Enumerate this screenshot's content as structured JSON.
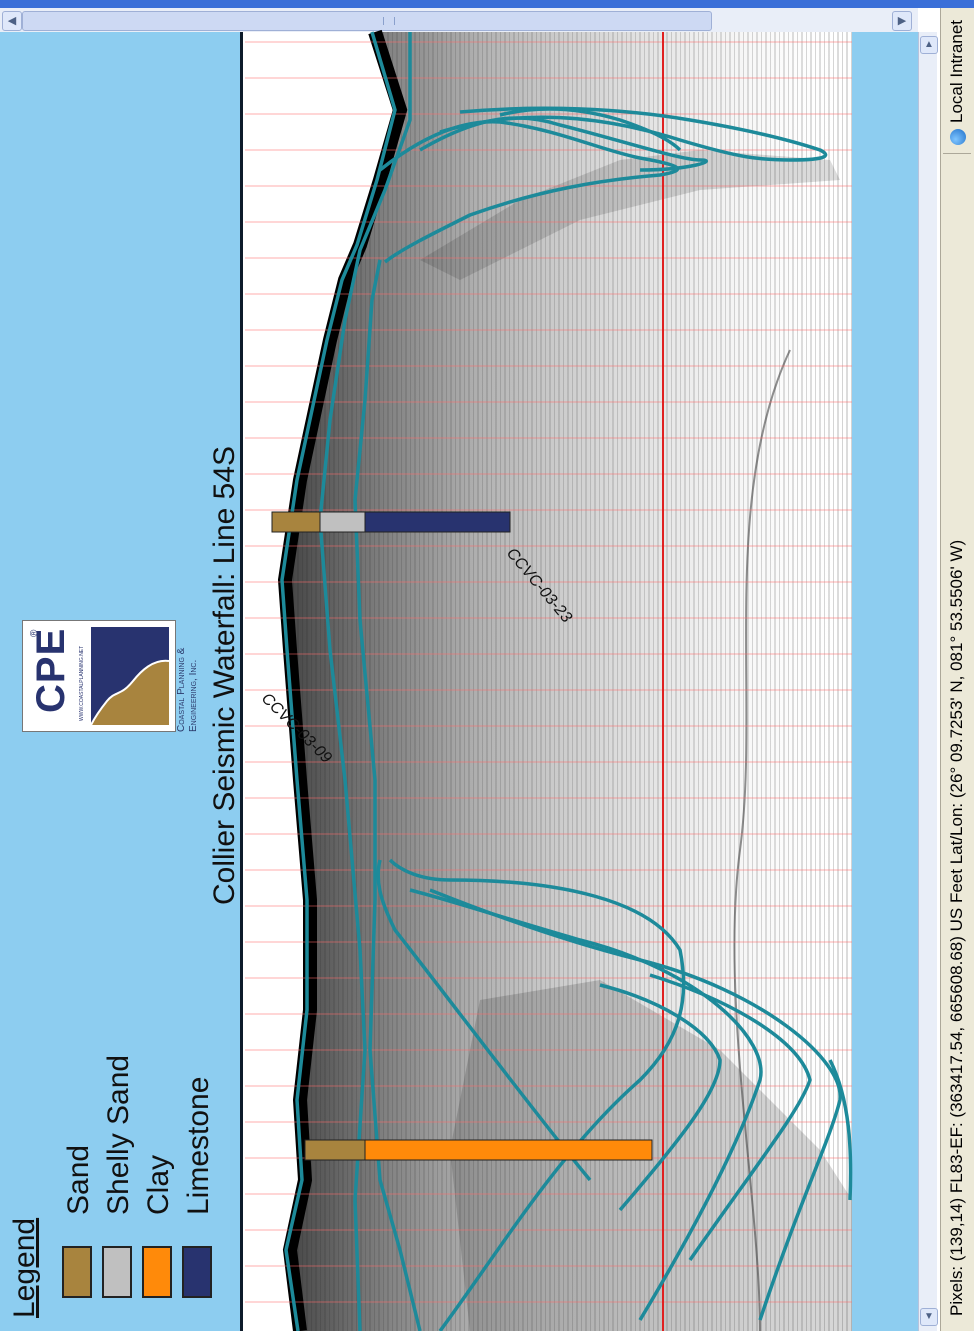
{
  "title": "Collier Seismic Waterfall: Line 54S",
  "legend": {
    "heading": "Legend",
    "items": [
      {
        "label": "Sand",
        "color": "#a8843e"
      },
      {
        "label": "Shelly Sand",
        "color": "#c0c0c0"
      },
      {
        "label": "Clay",
        "color": "#ff8a0a"
      },
      {
        "label": "Limestone",
        "color": "#28336f"
      }
    ]
  },
  "logo": {
    "mark": "CPE",
    "registered": "®",
    "url": "WWW.COASTALPLANNING.NET",
    "company_line1": "Coastal Planning &",
    "company_line2": "Engineering, Inc."
  },
  "cores": [
    {
      "label": "CCVC-03-09"
    },
    {
      "label": "CCVC-03-23"
    }
  ],
  "status_bar": {
    "text": "Pixels: (139,14)  FL83-EF: (363417.54, 665608.68) US Feet   Lat/Lon: (26° 09.7253' N, 081° 53.5506' W)",
    "zone": "Local Intranet"
  },
  "colors": {
    "page_background": "#8dcdf0",
    "horizon_line": "#1d8a9a",
    "reference_line": "#e02020"
  },
  "icons": {
    "scroll_left": "arrow-left-icon",
    "scroll_right": "arrow-right-icon",
    "scroll_up": "arrow-up-icon",
    "scroll_down": "arrow-down-icon",
    "zone": "globe-icon"
  }
}
